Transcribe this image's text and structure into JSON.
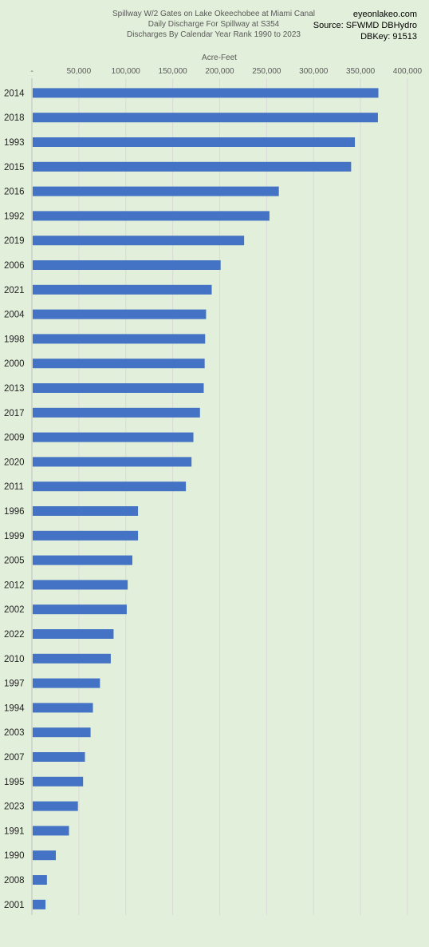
{
  "chart_data": {
    "type": "bar",
    "orientation": "horizontal",
    "title_lines": [
      "Spillway W/2 Gates on Lake Okeechobee at Miami Canal",
      "Daily Discharge For Spillway at S354",
      "Discharges By Calendar Year Rank 1990 to 2023"
    ],
    "source_lines": [
      "eyeonlakeo.com",
      "Source: SFWMD DBHydro",
      "DBKey: 91513"
    ],
    "xlabel": "Acre-Feet",
    "ylabel": "",
    "xlim": [
      0,
      400000
    ],
    "x_ticks": [
      "-",
      "50,000",
      "100,000",
      "150,000",
      "200,000",
      "250,000",
      "300,000",
      "350,000",
      "400,000"
    ],
    "grid": true,
    "legend": "none",
    "bar_color": "#4472c4",
    "categories": [
      "2014",
      "2018",
      "1993",
      "2015",
      "2016",
      "1992",
      "2019",
      "2006",
      "2021",
      "2004",
      "1998",
      "2000",
      "2013",
      "2017",
      "2009",
      "2020",
      "2011",
      "1996",
      "1999",
      "2005",
      "2012",
      "2002",
      "2022",
      "2010",
      "1997",
      "1994",
      "2003",
      "2007",
      "1995",
      "2023",
      "1991",
      "1990",
      "2008",
      "2001"
    ],
    "values": [
      369000,
      368500,
      344000,
      340000,
      263000,
      253000,
      226000,
      201000,
      191500,
      185500,
      184500,
      184000,
      183000,
      179000,
      172000,
      170000,
      164000,
      113000,
      113000,
      107000,
      102000,
      101000,
      87000,
      84000,
      72500,
      65000,
      62500,
      56500,
      54500,
      49000,
      39500,
      25500,
      16000,
      14500
    ]
  }
}
